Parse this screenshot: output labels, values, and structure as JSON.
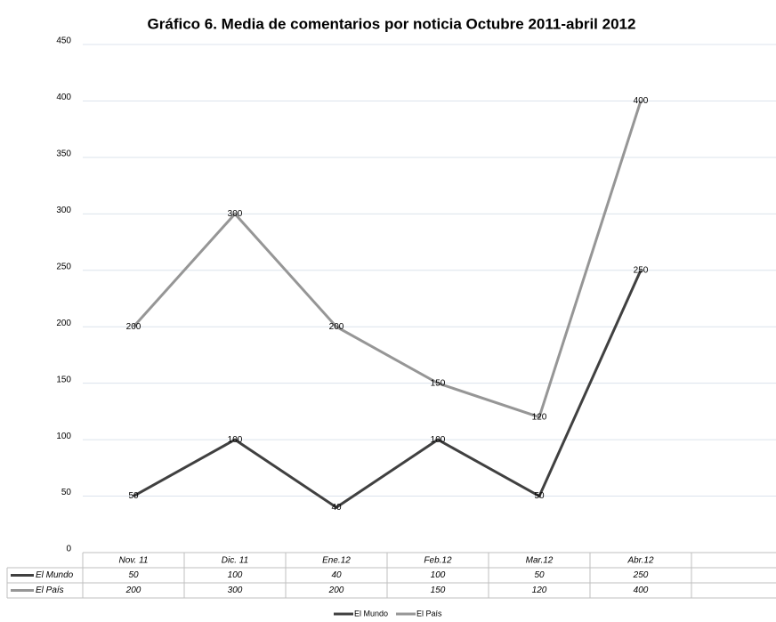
{
  "chart_data": {
    "type": "line",
    "title": "Gráfico 6. Media de comentarios por noticia Octubre 2011-abril 2012",
    "categories": [
      "Nov. 11",
      "Dic. 11",
      "Ene.12",
      "Feb.12",
      "Mar.12",
      "Abr.12"
    ],
    "series": [
      {
        "name": "El Mundo",
        "color": "#404040",
        "values": [
          50,
          100,
          40,
          100,
          50,
          250
        ]
      },
      {
        "name": "El País",
        "color": "#969696",
        "values": [
          200,
          300,
          200,
          150,
          120,
          400
        ]
      }
    ],
    "ylim": [
      0,
      450
    ],
    "yticks": [
      0,
      50,
      100,
      150,
      200,
      250,
      300,
      350,
      400,
      450
    ],
    "grid": true
  }
}
